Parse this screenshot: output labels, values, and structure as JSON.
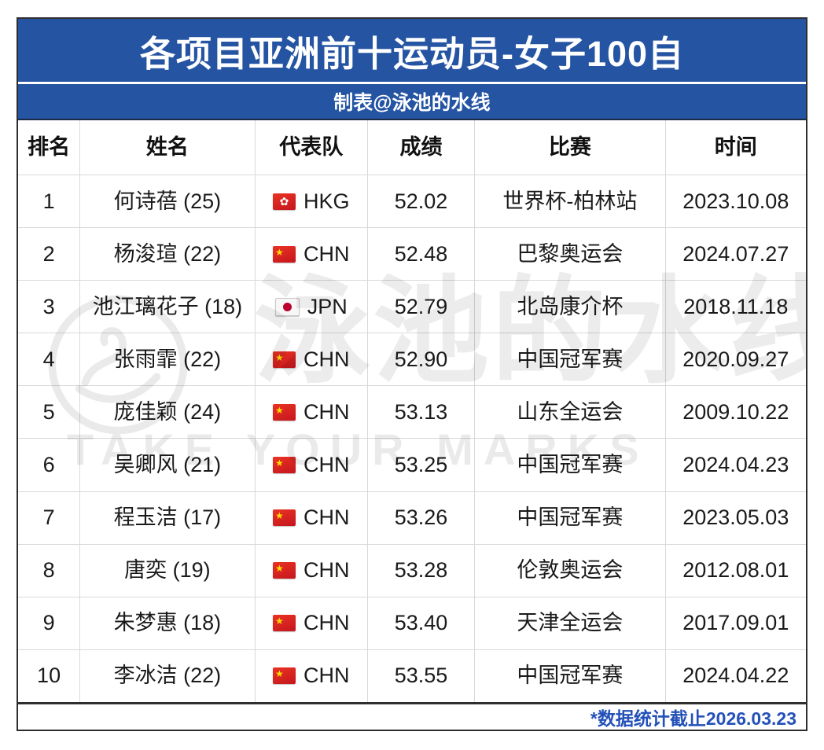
{
  "page": {
    "title": "各项目亚洲前十运动员-女子100自",
    "subtitle": "制表@泳池的水线",
    "footnote": "*数据统计截止2026.03.23"
  },
  "colors": {
    "banner_blue": "#2554a3",
    "footnote_blue": "#2451b8",
    "flag_red": "#de2910",
    "star_yellow": "#ffde00",
    "japan_red": "#bc002d",
    "grid_line": "#d9d9d9"
  },
  "watermark": {
    "cn": "泳池的水线",
    "en": "TAKE YOUR MARKS"
  },
  "chart_data": {
    "type": "table",
    "title": "各项目亚洲前十运动员-女子100自",
    "subtitle": "制表@泳池的水线",
    "footnote": "*数据统计截止2026.03.23",
    "columns": [
      "排名",
      "姓名",
      "代表队",
      "成绩",
      "比赛",
      "时间"
    ],
    "rows": [
      {
        "rank": "1",
        "name": "何诗蓓 (25)",
        "flag": "hkg",
        "team": "HKG",
        "result": "52.02",
        "meet": "世界杯-柏林站",
        "date": "2023.10.08"
      },
      {
        "rank": "2",
        "name": "杨浚瑄 (22)",
        "flag": "chn",
        "team": "CHN",
        "result": "52.48",
        "meet": "巴黎奥运会",
        "date": "2024.07.27"
      },
      {
        "rank": "3",
        "name": "池江璃花子 (18)",
        "flag": "jpn",
        "team": "JPN",
        "result": "52.79",
        "meet": "北岛康介杯",
        "date": "2018.11.18"
      },
      {
        "rank": "4",
        "name": "张雨霏 (22)",
        "flag": "chn",
        "team": "CHN",
        "result": "52.90",
        "meet": "中国冠军赛",
        "date": "2020.09.27"
      },
      {
        "rank": "5",
        "name": "庞佳颖 (24)",
        "flag": "chn",
        "team": "CHN",
        "result": "53.13",
        "meet": "山东全运会",
        "date": "2009.10.22"
      },
      {
        "rank": "6",
        "name": "吴卿风 (21)",
        "flag": "chn",
        "team": "CHN",
        "result": "53.25",
        "meet": "中国冠军赛",
        "date": "2024.04.23"
      },
      {
        "rank": "7",
        "name": "程玉洁 (17)",
        "flag": "chn",
        "team": "CHN",
        "result": "53.26",
        "meet": "中国冠军赛",
        "date": "2023.05.03"
      },
      {
        "rank": "8",
        "name": "唐奕 (19)",
        "flag": "chn",
        "team": "CHN",
        "result": "53.28",
        "meet": "伦敦奥运会",
        "date": "2012.08.01"
      },
      {
        "rank": "9",
        "name": "朱梦惠 (18)",
        "flag": "chn",
        "team": "CHN",
        "result": "53.40",
        "meet": "天津全运会",
        "date": "2017.09.01"
      },
      {
        "rank": "10",
        "name": "李冰洁 (22)",
        "flag": "chn",
        "team": "CHN",
        "result": "53.55",
        "meet": "中国冠军赛",
        "date": "2024.04.22"
      }
    ]
  }
}
